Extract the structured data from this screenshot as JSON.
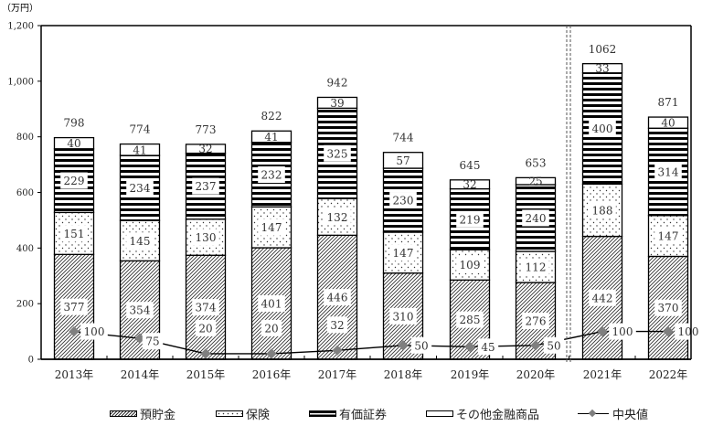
{
  "chart_data": {
    "type": "bar",
    "stacked": true,
    "title": "",
    "unit_label": "（万円）",
    "xlabel": "",
    "ylabel": "（万円）",
    "ylim": [
      0,
      1200
    ],
    "yticks": [
      0,
      200,
      400,
      600,
      800,
      1000,
      1200
    ],
    "ytick_labels": [
      "0",
      "200",
      "400",
      "600",
      "800",
      "1,000",
      "1,200"
    ],
    "categories": [
      "2013年",
      "2014年",
      "2015年",
      "2016年",
      "2017年",
      "2018年",
      "2019年",
      "2020年",
      "2021年",
      "2022年"
    ],
    "series": [
      {
        "name": "預貯金",
        "pattern": "diagonal-hatch",
        "values": [
          377,
          354,
          374,
          401,
          446,
          310,
          285,
          276,
          442,
          370
        ]
      },
      {
        "name": "保険",
        "pattern": "dots",
        "values": [
          151,
          145,
          130,
          147,
          132,
          147,
          109,
          112,
          188,
          147
        ]
      },
      {
        "name": "有価証券",
        "pattern": "horizontal-stripes",
        "values": [
          229,
          234,
          237,
          232,
          325,
          230,
          219,
          240,
          400,
          314
        ]
      },
      {
        "name": "その他金融商品",
        "pattern": "blank",
        "values": [
          40,
          41,
          32,
          41,
          39,
          57,
          32,
          25,
          33,
          40
        ]
      }
    ],
    "totals": [
      798,
      774,
      773,
      822,
      942,
      744,
      645,
      653,
      1062,
      871
    ],
    "line_series": {
      "name": "中央値",
      "type": "line",
      "marker": "diamond",
      "color": "#7f7f7f",
      "values": [
        100,
        75,
        20,
        20,
        32,
        50,
        45,
        50,
        100,
        100
      ]
    },
    "divider": {
      "style": "double-dashed",
      "between": [
        "2020年",
        "2021年"
      ]
    },
    "legend": {
      "position": "bottom",
      "entries": [
        "預貯金",
        "保険",
        "有価証券",
        "その他金融商品",
        "中央値"
      ]
    },
    "grid": false
  }
}
